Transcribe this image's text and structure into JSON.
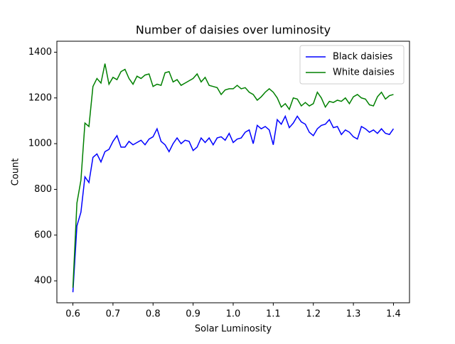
{
  "chart_data": {
    "type": "line",
    "title": "Number of daisies over luminosity",
    "xlabel": "Solar Luminosity",
    "ylabel": "Count",
    "x": [
      0.6,
      0.61,
      0.62,
      0.63,
      0.64,
      0.65,
      0.66,
      0.67,
      0.68,
      0.69,
      0.7,
      0.71,
      0.72,
      0.73,
      0.74,
      0.75,
      0.76,
      0.77,
      0.78,
      0.79,
      0.8,
      0.81,
      0.82,
      0.83,
      0.84,
      0.85,
      0.86,
      0.87,
      0.88,
      0.89,
      0.9,
      0.91,
      0.92,
      0.93,
      0.94,
      0.95,
      0.96,
      0.97,
      0.98,
      0.99,
      1.0,
      1.01,
      1.02,
      1.03,
      1.04,
      1.05,
      1.06,
      1.07,
      1.08,
      1.09,
      1.1,
      1.11,
      1.12,
      1.13,
      1.14,
      1.15,
      1.16,
      1.17,
      1.18,
      1.19,
      1.2,
      1.21,
      1.22,
      1.23,
      1.24,
      1.25,
      1.26,
      1.27,
      1.28,
      1.29,
      1.3,
      1.31,
      1.32,
      1.33,
      1.34,
      1.35,
      1.36,
      1.37,
      1.38,
      1.39,
      1.4
    ],
    "series": [
      {
        "name": "Black daisies",
        "color": "#0000ff",
        "values": [
          350,
          640,
          700,
          855,
          830,
          940,
          955,
          920,
          965,
          975,
          1010,
          1035,
          985,
          985,
          1010,
          995,
          1005,
          1015,
          995,
          1020,
          1030,
          1065,
          1010,
          995,
          965,
          1000,
          1025,
          1000,
          1015,
          1010,
          970,
          985,
          1025,
          1005,
          1025,
          995,
          1025,
          1030,
          1015,
          1045,
          1005,
          1020,
          1025,
          1050,
          1060,
          1000,
          1080,
          1065,
          1075,
          1060,
          995,
          1105,
          1085,
          1120,
          1070,
          1090,
          1120,
          1095,
          1085,
          1050,
          1035,
          1065,
          1080,
          1085,
          1105,
          1070,
          1075,
          1040,
          1060,
          1050,
          1030,
          1020,
          1075,
          1065,
          1050,
          1060,
          1045,
          1065,
          1045,
          1040,
          1065
        ]
      },
      {
        "name": "White daisies",
        "color": "#008000",
        "values": [
          370,
          740,
          840,
          1090,
          1075,
          1250,
          1285,
          1265,
          1350,
          1260,
          1290,
          1280,
          1315,
          1325,
          1285,
          1260,
          1295,
          1285,
          1300,
          1305,
          1250,
          1260,
          1255,
          1310,
          1315,
          1270,
          1280,
          1255,
          1265,
          1275,
          1285,
          1305,
          1270,
          1290,
          1255,
          1250,
          1245,
          1215,
          1235,
          1240,
          1240,
          1255,
          1240,
          1245,
          1225,
          1215,
          1190,
          1205,
          1225,
          1240,
          1225,
          1200,
          1160,
          1175,
          1150,
          1200,
          1195,
          1165,
          1180,
          1165,
          1175,
          1225,
          1200,
          1160,
          1185,
          1180,
          1190,
          1185,
          1200,
          1175,
          1205,
          1215,
          1200,
          1195,
          1170,
          1165,
          1205,
          1225,
          1195,
          1210,
          1215
        ]
      }
    ],
    "xlim": [
      0.56,
      1.44
    ],
    "ylim": [
      304,
      1448
    ],
    "xticks": [
      0.6,
      0.7,
      0.8,
      0.9,
      {
        "value": 1,
        "label": "1.0"
      },
      1.1,
      1.2,
      1.3,
      1.4
    ],
    "yticks": [
      400,
      600,
      800,
      1000,
      1200,
      1400
    ],
    "legend": "upper right",
    "grid": false
  }
}
